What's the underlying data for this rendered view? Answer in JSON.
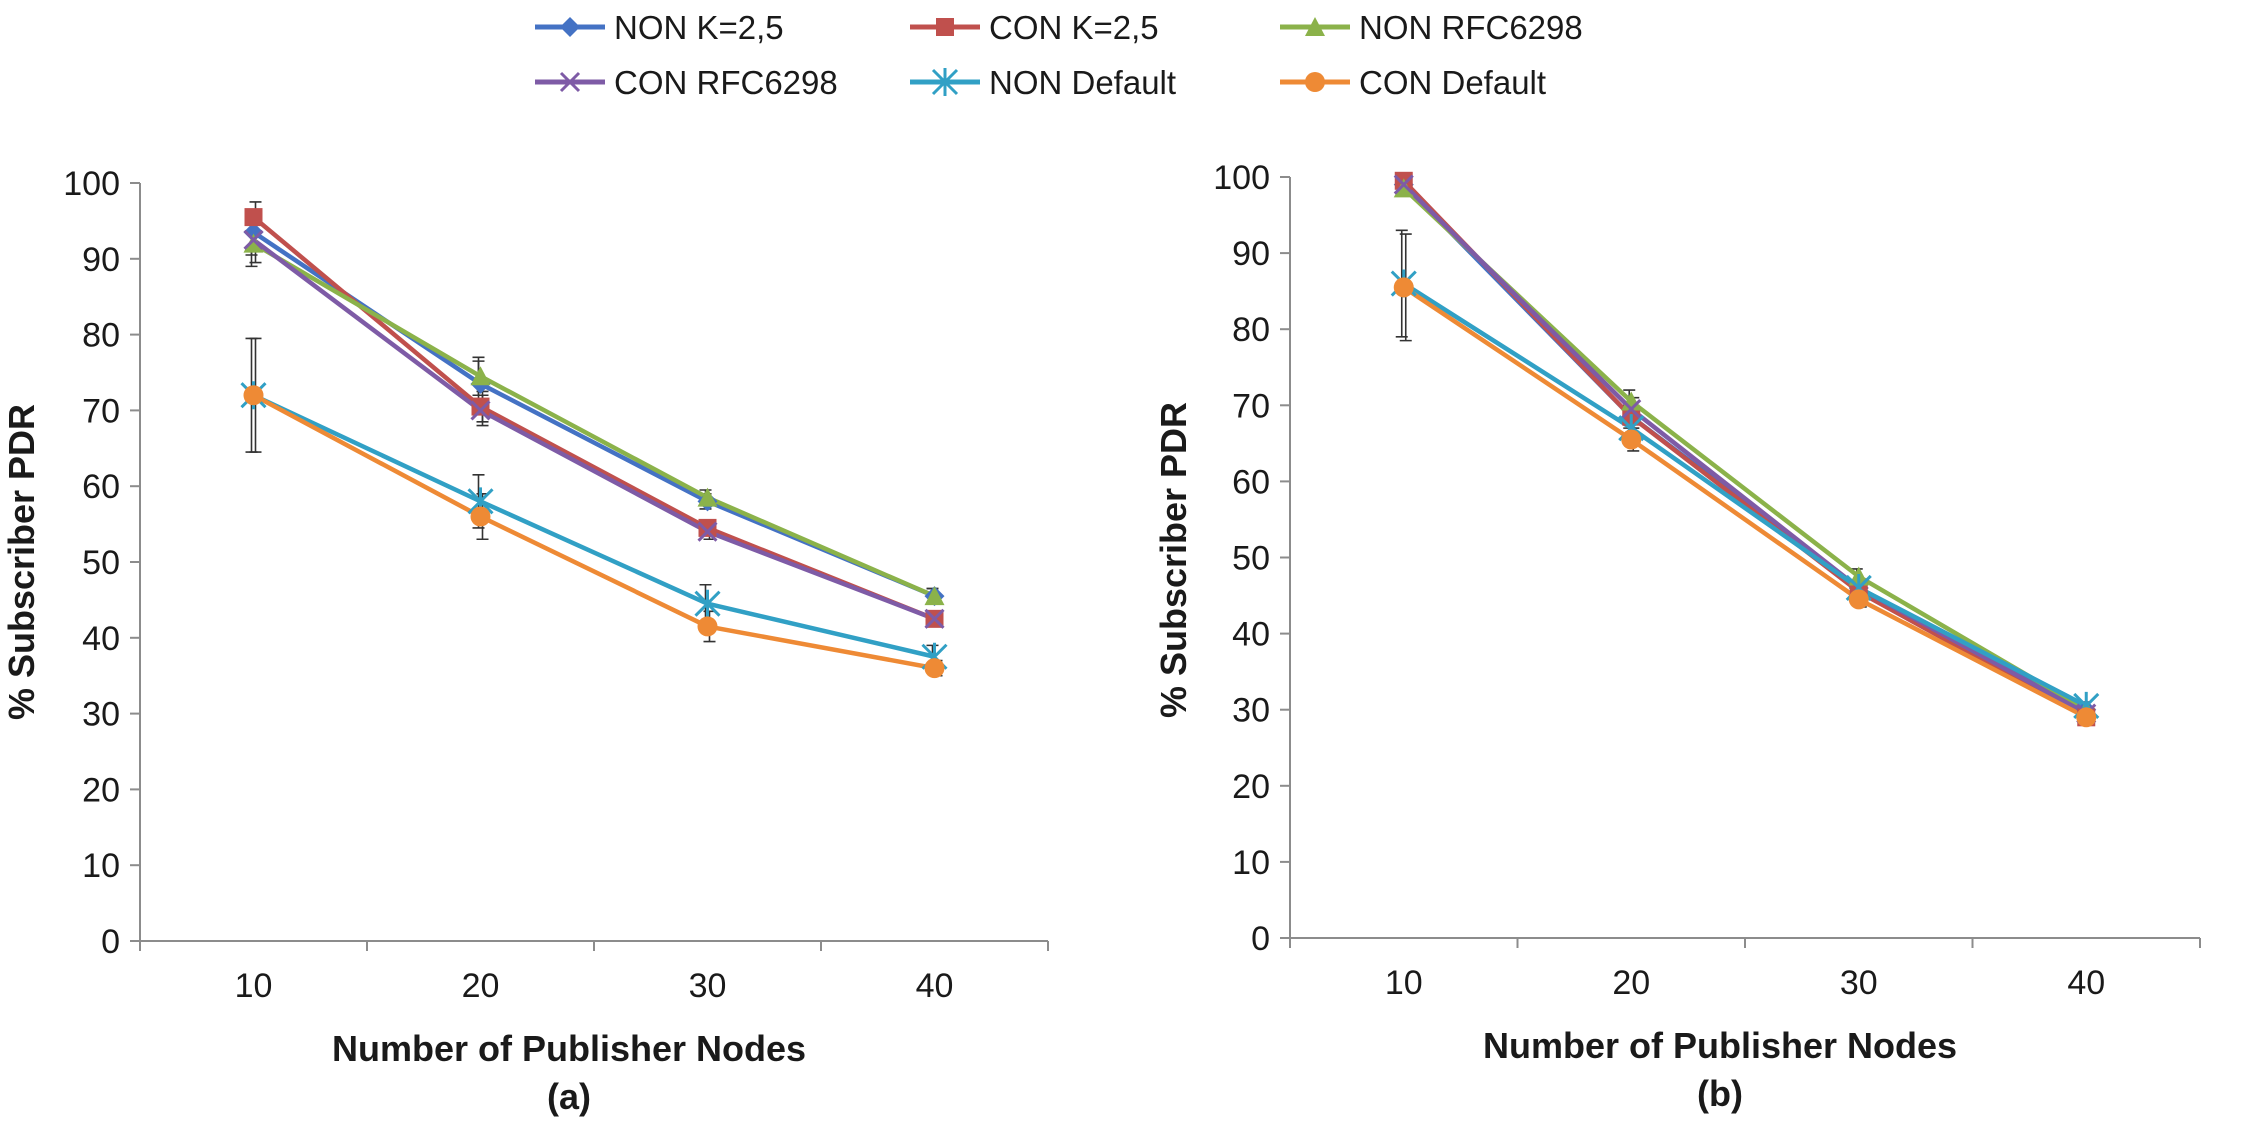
{
  "legend": [
    {
      "name": "NON K=2,5",
      "color": "#4472C4",
      "marker": "diamond"
    },
    {
      "name": "CON K=2,5",
      "color": "#C0504D",
      "marker": "square"
    },
    {
      "name": "NON RFC6298",
      "color": "#8BB24A",
      "marker": "triangle"
    },
    {
      "name": "CON RFC6298",
      "color": "#7E5BA6",
      "marker": "x"
    },
    {
      "name": "NON Default",
      "color": "#31A0C5",
      "marker": "star"
    },
    {
      "name": "CON Default",
      "color": "#EE8A35",
      "marker": "circle"
    }
  ],
  "chart_data": [
    {
      "type": "line",
      "caption": "(a)",
      "xlabel": "Number of Publisher Nodes",
      "ylabel": "% Subscriber PDR",
      "categories": [
        "10",
        "20",
        "30",
        "40"
      ],
      "ylim": [
        0,
        100
      ],
      "yticks": [
        "0",
        "10",
        "20",
        "30",
        "40",
        "50",
        "60",
        "70",
        "80",
        "90",
        "100"
      ],
      "series": [
        {
          "name": "NON K=2,5",
          "values": [
            93.5,
            73.5,
            58,
            45.5
          ],
          "err": [
            3,
            3,
            1,
            1
          ]
        },
        {
          "name": "CON K=2,5",
          "values": [
            95.5,
            70.5,
            54.5,
            42.5
          ],
          "err": [
            2,
            2,
            1,
            1
          ]
        },
        {
          "name": "NON RFC6298",
          "values": [
            92,
            74.5,
            58.5,
            45.5
          ],
          "err": [
            3,
            2.5,
            1,
            1
          ]
        },
        {
          "name": "CON RFC6298",
          "values": [
            92.5,
            70,
            54,
            42.5
          ],
          "err": [
            3,
            2,
            1,
            1
          ]
        },
        {
          "name": "NON Default",
          "values": [
            72,
            58,
            44.5,
            37.5
          ],
          "err": [
            7.5,
            3.5,
            2.5,
            1.5
          ]
        },
        {
          "name": "CON Default",
          "values": [
            72,
            56,
            41.5,
            36
          ],
          "err": [
            7.5,
            3,
            2,
            1
          ]
        }
      ]
    },
    {
      "type": "line",
      "caption": "(b)",
      "xlabel": "Number of Publisher Nodes",
      "ylabel": "% Subscriber PDR",
      "categories": [
        "10",
        "20",
        "30",
        "40"
      ],
      "ylim": [
        0,
        100
      ],
      "yticks": [
        "0",
        "10",
        "20",
        "30",
        "40",
        "50",
        "60",
        "70",
        "80",
        "90",
        "100"
      ],
      "series": [
        {
          "name": "NON K=2,5",
          "values": [
            99,
            68.5,
            46,
            30
          ],
          "err": [
            1,
            1.5,
            1,
            0.5
          ]
        },
        {
          "name": "CON K=2,5",
          "values": [
            99.5,
            68.5,
            45.5,
            29
          ],
          "err": [
            1,
            1.5,
            1,
            0.5
          ]
        },
        {
          "name": "NON RFC6298",
          "values": [
            98.5,
            70.5,
            47.5,
            30
          ],
          "err": [
            1,
            1.5,
            1,
            0.5
          ]
        },
        {
          "name": "CON RFC6298",
          "values": [
            99,
            69.5,
            46,
            29.5
          ],
          "err": [
            1,
            1.5,
            1,
            0.5
          ]
        },
        {
          "name": "NON Default",
          "values": [
            86,
            67,
            46,
            30.5
          ],
          "err": [
            7,
            2,
            1,
            0.5
          ]
        },
        {
          "name": "CON Default",
          "values": [
            85.5,
            65.5,
            44.5,
            29
          ],
          "err": [
            7,
            1.5,
            1,
            0.5
          ]
        }
      ]
    }
  ]
}
